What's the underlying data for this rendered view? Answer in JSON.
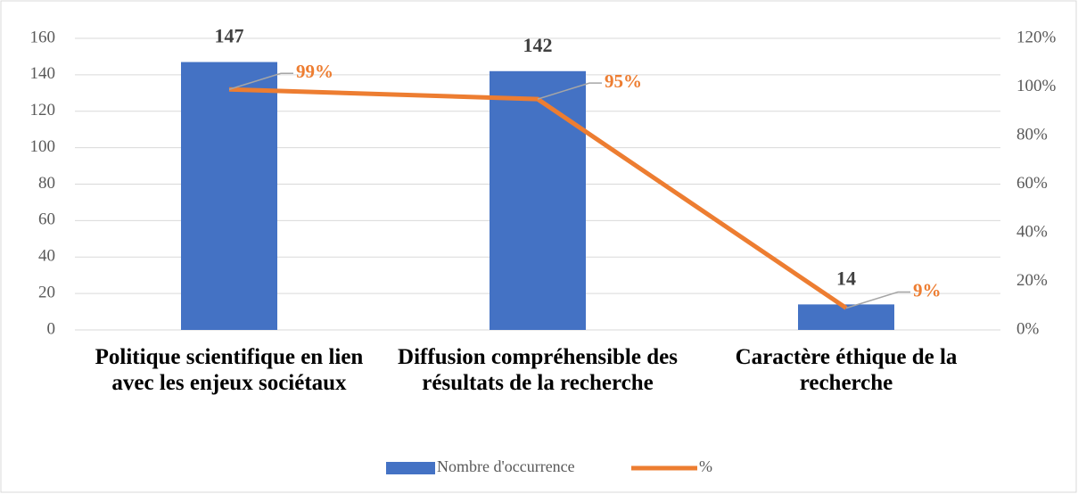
{
  "chart_data": {
    "type": "bar",
    "categories": [
      "Politique scientifique en lien avec les enjeux sociétaux",
      "Diffusion compréhensible des résultats de la recherche",
      "Caractère éthique de la recherche"
    ],
    "series": [
      {
        "name": "Nombre d'occurrence",
        "type": "bar",
        "color": "#4472c4",
        "values": [
          147,
          142,
          14
        ]
      },
      {
        "name": "%",
        "type": "line",
        "axis": "y2",
        "color": "#ed7d31",
        "values": [
          99,
          95,
          9
        ],
        "value_labels": [
          "99%",
          "95%",
          "9%"
        ]
      }
    ],
    "ylim": [
      0,
      160
    ],
    "yticks": [
      0,
      20,
      40,
      60,
      80,
      100,
      120,
      140,
      160
    ],
    "y2lim": [
      0,
      120
    ],
    "y2ticks": [
      {
        "value": 0,
        "label": "0%"
      },
      {
        "value": 20,
        "label": "20%"
      },
      {
        "value": 40,
        "label": "40%"
      },
      {
        "value": 60,
        "label": "60%"
      },
      {
        "value": 80,
        "label": "80%"
      },
      {
        "value": 100,
        "label": "100%"
      },
      {
        "value": 120,
        "label": "120%"
      }
    ],
    "grid": true,
    "legend": "bottom"
  }
}
